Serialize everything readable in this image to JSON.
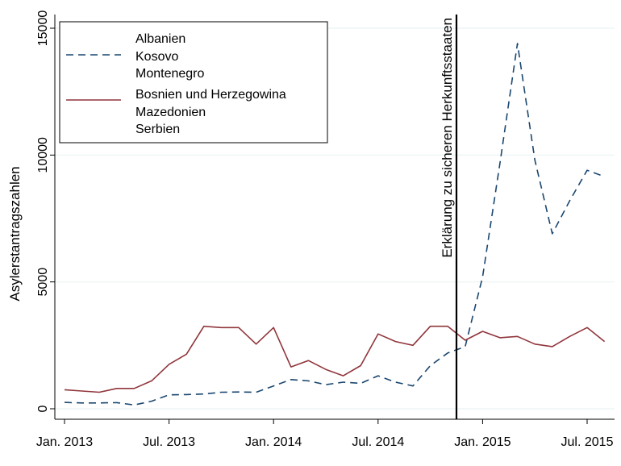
{
  "chart_data": {
    "type": "line",
    "title": "",
    "xlabel": "",
    "ylabel": "Asylerstantragszahlen",
    "ylim": [
      0,
      15000
    ],
    "yticks": [
      0,
      5000,
      10000,
      15000
    ],
    "xlim": [
      0,
      31
    ],
    "x_ticks": [
      {
        "pos": 0,
        "label": "Jan. 2013"
      },
      {
        "pos": 6,
        "label": "Jul. 2013"
      },
      {
        "pos": 12,
        "label": "Jan. 2014"
      },
      {
        "pos": 18,
        "label": "Jul. 2014"
      },
      {
        "pos": 24,
        "label": "Jan. 2015"
      },
      {
        "pos": 30,
        "label": "Jul. 2015"
      }
    ],
    "grid": true,
    "legend_position": "top-left",
    "x": [
      "Jan. 2013",
      "Feb. 2013",
      "Mär. 2013",
      "Apr. 2013",
      "Mai 2013",
      "Jun. 2013",
      "Jul. 2013",
      "Aug. 2013",
      "Sep. 2013",
      "Okt. 2013",
      "Nov. 2013",
      "Dez. 2013",
      "Jan. 2014",
      "Feb. 2014",
      "Mär. 2014",
      "Apr. 2014",
      "Mai 2014",
      "Jun. 2014",
      "Jul. 2014",
      "Aug. 2014",
      "Sep. 2014",
      "Okt. 2014",
      "Nov. 2014",
      "Dez. 2014",
      "Jan. 2015",
      "Feb. 2015",
      "Mär. 2015",
      "Apr. 2015",
      "Mai 2015",
      "Jun. 2015",
      "Jul. 2015",
      "Aug. 2015"
    ],
    "series": [
      {
        "name": "Albanien\nKosovo\nMontenegro",
        "legend_lines": [
          "Albanien",
          "Kosovo",
          "Montenegro"
        ],
        "style": "dashed",
        "color": "#1a476f",
        "values": [
          250,
          230,
          230,
          240,
          150,
          300,
          550,
          560,
          580,
          650,
          660,
          650,
          900,
          1150,
          1100,
          950,
          1050,
          1000,
          1300,
          1050,
          900,
          1700,
          2200,
          2450,
          5200,
          9700,
          14400,
          9800,
          6900,
          8200,
          9400,
          9150
        ]
      },
      {
        "name": "Bosnien und Herzegowina\nMazedonien\nSerbien",
        "legend_lines": [
          "Bosnien und Herzegowina",
          "Mazedonien",
          "Serbien"
        ],
        "style": "solid",
        "color": "#90353b",
        "values": [
          750,
          700,
          650,
          800,
          800,
          1100,
          1750,
          2150,
          3250,
          3200,
          3200,
          2550,
          3200,
          1650,
          1900,
          1550,
          1300,
          1700,
          2950,
          2650,
          2500,
          3250,
          3250,
          2700,
          3050,
          2800,
          2850,
          2550,
          2450,
          2850,
          3200,
          2650
        ]
      }
    ],
    "annotations": [
      {
        "type": "vline",
        "x": 22.5,
        "color": "#000000",
        "label": "Erklärung zu sicheren Herkunftsstaaten"
      }
    ]
  }
}
